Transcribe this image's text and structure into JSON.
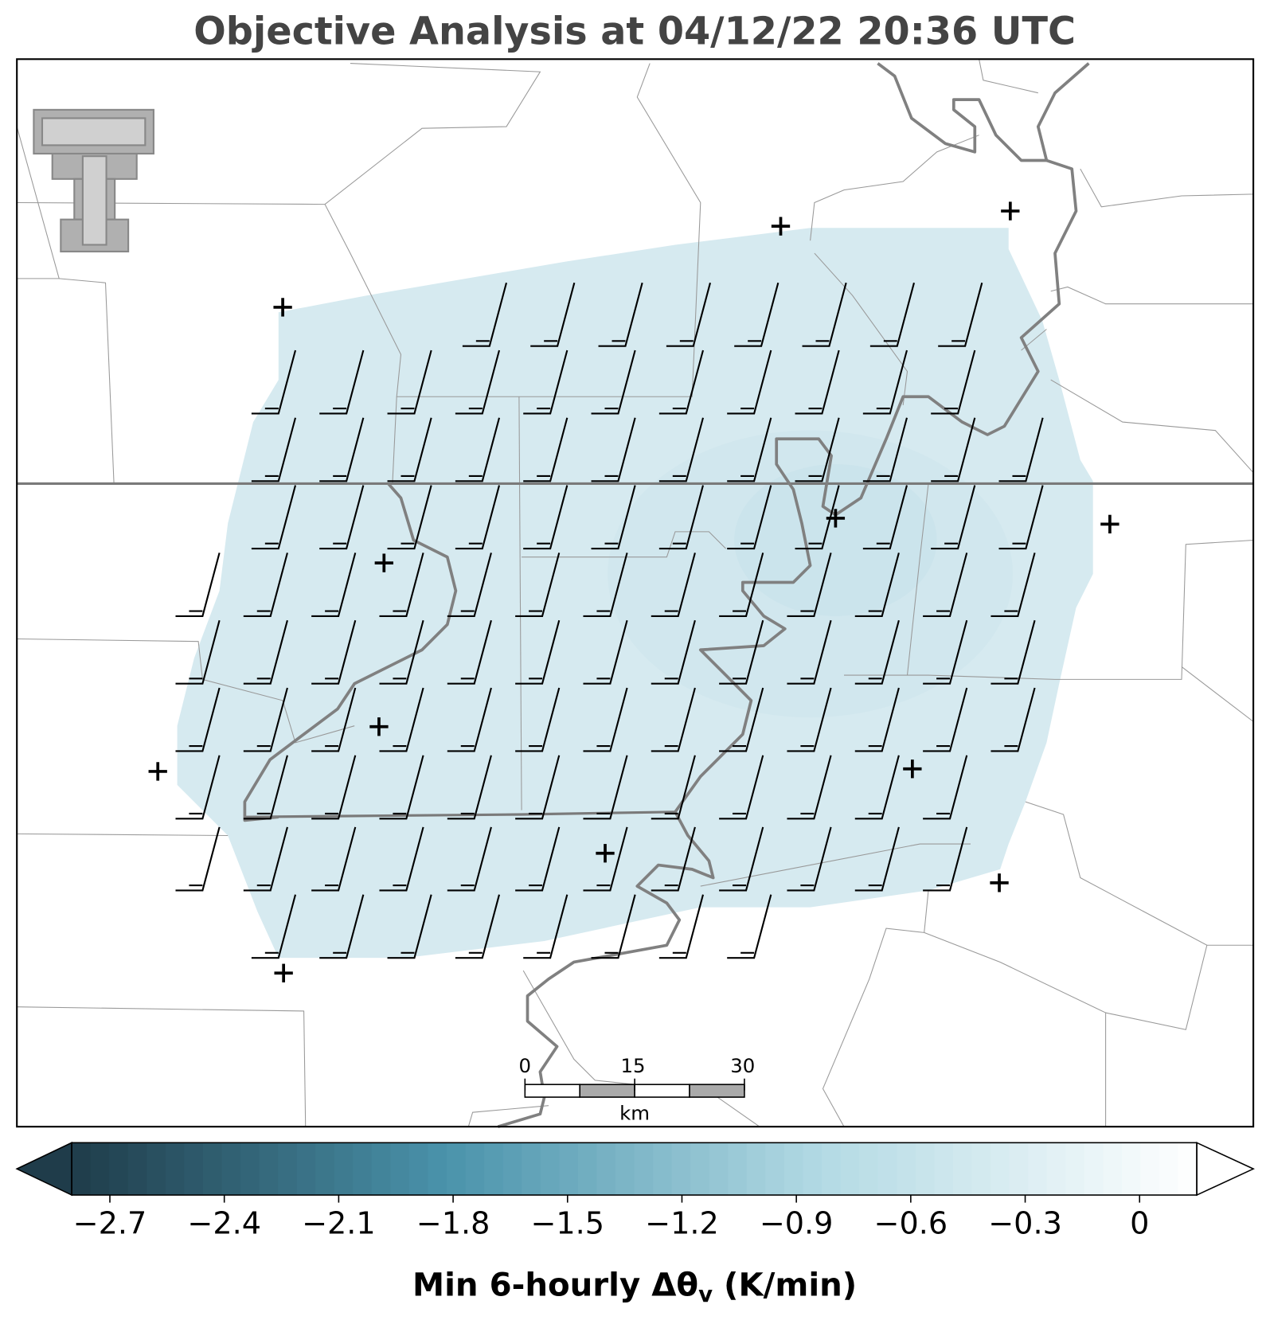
{
  "chart_data": {
    "type": "map",
    "title": "Objective Analysis at 04/12/22 20:36 UTC",
    "colorbar": {
      "label": "Min 6-hourly Δθ",
      "label_subscript": "v",
      "label_suffix": " (K/min)",
      "vlim": [
        -2.8,
        0.15
      ],
      "ticks": [
        {
          "value": -2.7,
          "label": "−2.7"
        },
        {
          "value": -2.4,
          "label": "−2.4"
        },
        {
          "value": -2.1,
          "label": "−2.1"
        },
        {
          "value": -1.8,
          "label": "−1.8"
        },
        {
          "value": -1.5,
          "label": "−1.5"
        },
        {
          "value": -1.2,
          "label": "−1.2"
        },
        {
          "value": -0.9,
          "label": "−0.9"
        },
        {
          "value": -0.6,
          "label": "−0.6"
        },
        {
          "value": -0.3,
          "label": "−0.3"
        },
        0.0
      ],
      "colormap": [
        "#1f3c4a",
        "#4a93ab",
        "#b3dae4",
        "#ffffff"
      ]
    },
    "scalebar": {
      "unit": "km",
      "xlim": [
        0,
        30
      ],
      "ticks": [
        0,
        15,
        30
      ]
    }
  }
}
